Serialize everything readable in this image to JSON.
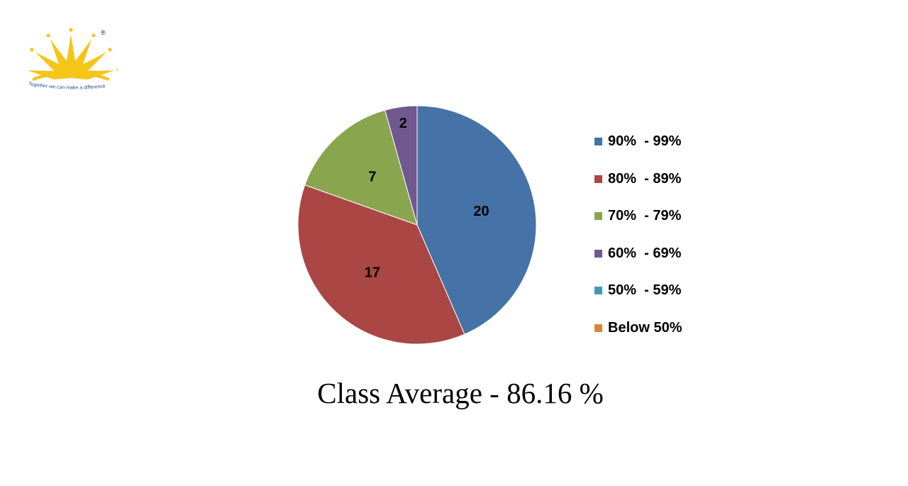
{
  "logo": {
    "tagline": "Together we can make a difference",
    "registered_mark": "®",
    "color": "#F5C518",
    "tagline_color": "#1F4E9E"
  },
  "chart_data": {
    "type": "pie",
    "title": "",
    "categories": [
      "90%  - 99%",
      "80%  - 89%",
      "70%  - 79%",
      "60%  - 69%",
      "50%  - 59%",
      "Below 50%"
    ],
    "values": [
      20,
      17,
      7,
      2,
      0,
      0
    ],
    "data_labels": [
      "20",
      "17",
      "7",
      "2",
      "",
      ""
    ],
    "colors": [
      "#4572A7",
      "#AA4643",
      "#89A54E",
      "#71588F",
      "#4198AF",
      "#DB843D"
    ],
    "start_angle": "12 o'clock",
    "direction": "clockwise",
    "legend_position": "right"
  },
  "caption": "Class Average - 86.16 %"
}
